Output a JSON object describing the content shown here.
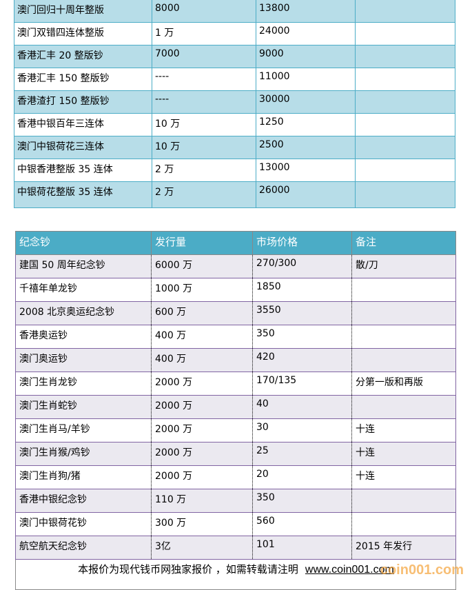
{
  "table1": {
    "rows": [
      [
        "澳门回归十周年整版",
        "8000",
        "13800",
        ""
      ],
      [
        "澳门双错四连体整版",
        "1 万",
        "24000",
        ""
      ],
      [
        "香港汇丰 20 整版钞",
        "7000",
        "9000",
        ""
      ],
      [
        "香港汇丰 150 整版钞",
        "----",
        "11000",
        ""
      ],
      [
        "香港渣打 150 整版钞",
        "----",
        "30000",
        ""
      ],
      [
        "香港中银百年三连体",
        "10 万",
        "1250",
        ""
      ],
      [
        "澳门中银荷花三连体",
        "10 万",
        "2500",
        ""
      ],
      [
        "中银香港整版 35 连体",
        "2 万",
        "13000",
        ""
      ],
      [
        "中银荷花整版 35 连体",
        "2 万",
        "26000",
        ""
      ]
    ]
  },
  "table2": {
    "headers": [
      "纪念钞",
      "发行量",
      "市场价格",
      "备注"
    ],
    "rows": [
      [
        "建国 50 周年纪念钞",
        "6000 万",
        "270/300",
        "散/刀"
      ],
      [
        "千禧年单龙钞",
        "1000 万",
        "1850",
        ""
      ],
      [
        "2008 北京奥运纪念钞",
        "600 万",
        "3550",
        ""
      ],
      [
        "香港奥运钞",
        "400 万",
        "350",
        ""
      ],
      [
        "澳门奥运钞",
        "400 万",
        "420",
        ""
      ],
      [
        "澳门生肖龙钞",
        "2000 万",
        "170/135",
        "分第一版和再版"
      ],
      [
        "澳门生肖蛇钞",
        "2000 万",
        "40",
        ""
      ],
      [
        "澳门生肖马/羊钞",
        "2000 万",
        "30",
        "十连"
      ],
      [
        "澳门生肖猴/鸡钞",
        "2000 万",
        "25",
        "十连"
      ],
      [
        "澳门生肖狗/猪",
        "2000 万",
        "20",
        "十连"
      ],
      [
        "香港中银纪念钞",
        "110 万",
        "350",
        ""
      ],
      [
        "澳门中银荷花钞",
        "300 万",
        "560",
        ""
      ],
      [
        "航空航天纪念钞",
        "3亿",
        "101",
        "2015 年发行"
      ]
    ],
    "footer": {
      "text": "本报价为现代钱币网独家报价 ，如需转载请注明",
      "link": "www.coin001.com"
    }
  },
  "watermark": "coin001.com",
  "colors": {
    "table1_fill": "#b7dde8",
    "table1_border": "#4bacc6",
    "header_fill": "#4bacc6",
    "row_alt": "#ebe9f0",
    "row_border": "#8064a2",
    "watermark": "#f5a33a"
  }
}
